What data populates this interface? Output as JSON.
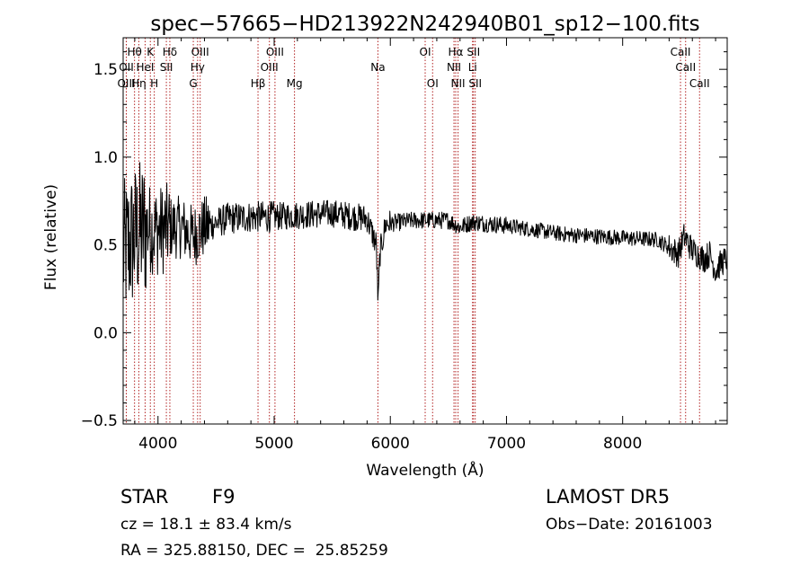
{
  "chart_data": {
    "type": "line",
    "title": "spec−57665−HD213922N242940B01_sp12−100.fits",
    "xlabel": "Wavelength (Å)",
    "ylabel": "Flux (relative)",
    "xlim": [
      3700,
      8900
    ],
    "ylim": [
      -0.52,
      1.68
    ],
    "x_ticks": [
      4000,
      5000,
      6000,
      7000,
      8000
    ],
    "x_tick_labels": [
      "4000",
      "5000",
      "6000",
      "7000",
      "8000"
    ],
    "y_ticks": [
      -0.5,
      0.0,
      0.5,
      1.0,
      1.5
    ],
    "y_tick_labels": [
      "−0.5",
      "0.0",
      "0.5",
      "1.0",
      "1.5"
    ],
    "grid": false,
    "line_color": "#000000",
    "marker_line_color": "#b22222",
    "spectrum_anchors": {
      "x": [
        3700,
        3800,
        3900,
        4000,
        4100,
        4200,
        4300,
        4400,
        4600,
        4800,
        5000,
        5200,
        5500,
        5800,
        5880,
        5895,
        5910,
        5960,
        6200,
        6500,
        6600,
        6700,
        7000,
        7500,
        8000,
        8300,
        8480,
        8530,
        8600,
        8700,
        8750,
        8800,
        8850,
        8900
      ],
      "y": [
        0.45,
        0.55,
        0.6,
        0.58,
        0.6,
        0.6,
        0.55,
        0.6,
        0.65,
        0.66,
        0.66,
        0.67,
        0.68,
        0.65,
        0.5,
        0.15,
        0.45,
        0.62,
        0.64,
        0.64,
        0.6,
        0.63,
        0.61,
        0.56,
        0.54,
        0.53,
        0.45,
        0.55,
        0.47,
        0.42,
        0.45,
        0.35,
        0.4,
        0.42
      ]
    },
    "spectral_lines": [
      {
        "label": "Hθ",
        "x": 3798,
        "row": 0
      },
      {
        "label": "OII",
        "x": 3727,
        "row": 1
      },
      {
        "label": "OIII",
        "x": 3727,
        "row": 2
      },
      {
        "label": "Hη",
        "x": 3835,
        "row": 2
      },
      {
        "label": "HeI",
        "x": 3889,
        "row": 1
      },
      {
        "label": "K",
        "x": 3934,
        "row": 0
      },
      {
        "label": "H",
        "x": 3968,
        "row": 2
      },
      {
        "label": "Hδ",
        "x": 4102,
        "row": 0
      },
      {
        "label": "SII",
        "x": 4072,
        "row": 1
      },
      {
        "label": "G",
        "x": 4304,
        "row": 2
      },
      {
        "label": "Hγ",
        "x": 4341,
        "row": 1
      },
      {
        "label": "OIII",
        "x": 4363,
        "row": 0
      },
      {
        "label": "Hβ",
        "x": 4861,
        "row": 2
      },
      {
        "label": "OIII",
        "x": 4959,
        "row": 1
      },
      {
        "label": "OIII",
        "x": 5007,
        "row": 0
      },
      {
        "label": "Mg",
        "x": 5175,
        "row": 2
      },
      {
        "label": "Na",
        "x": 5893,
        "row": 1
      },
      {
        "label": "OI",
        "x": 6300,
        "row": 0
      },
      {
        "label": "OI",
        "x": 6364,
        "row": 2
      },
      {
        "label": "NII",
        "x": 6548,
        "row": 1
      },
      {
        "label": "Hα",
        "x": 6563,
        "row": 0
      },
      {
        "label": "NII",
        "x": 6583,
        "row": 2
      },
      {
        "label": "Li",
        "x": 6708,
        "row": 1
      },
      {
        "label": "SII",
        "x": 6716,
        "row": 0
      },
      {
        "label": "SII",
        "x": 6731,
        "row": 2
      },
      {
        "label": "CaII",
        "x": 8498,
        "row": 0
      },
      {
        "label": "CaII",
        "x": 8542,
        "row": 1
      },
      {
        "label": "CaII",
        "x": 8662,
        "row": 2
      }
    ]
  },
  "info": {
    "object_class": "STAR",
    "subclass": "F9",
    "survey": "LAMOST DR5",
    "redshift_text": "cz = 18.1 ± 83.4 km/s",
    "obs_date": "Obs−Date: 20161003",
    "coords": "RA = 325.88150, DEC =  25.85259"
  }
}
